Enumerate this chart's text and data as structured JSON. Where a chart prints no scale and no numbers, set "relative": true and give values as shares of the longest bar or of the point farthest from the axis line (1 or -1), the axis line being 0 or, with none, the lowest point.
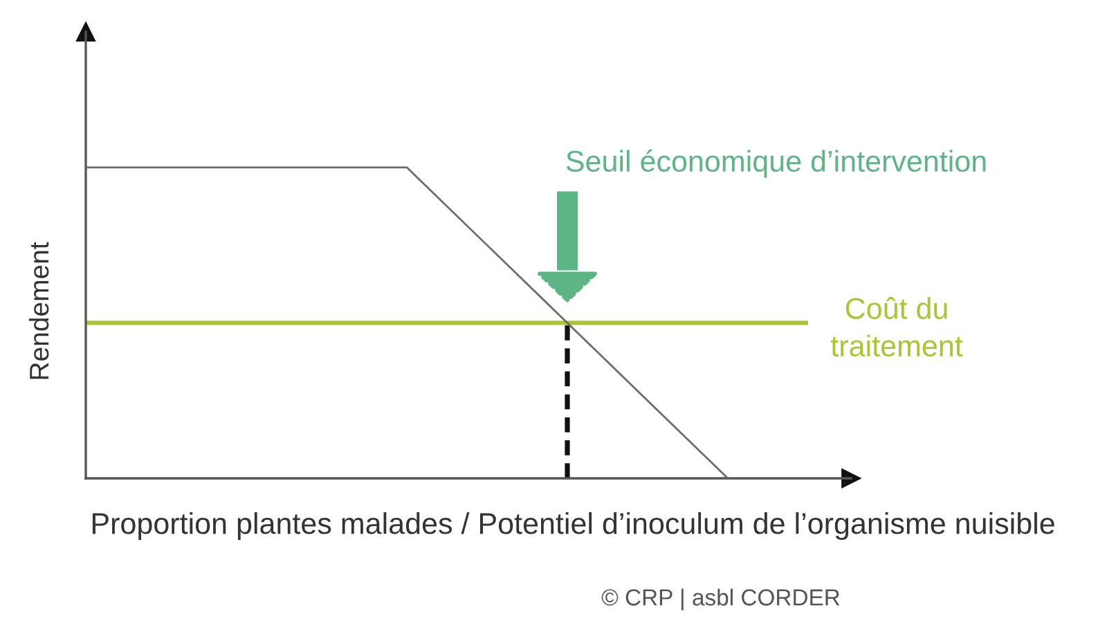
{
  "chart_data": {
    "type": "line",
    "relative": true,
    "xlabel": "Proportion plantes malades / Potentiel d’inoculum de l’organisme nuisible",
    "ylabel": "Rendement",
    "categories": [
      null,
      null,
      null,
      null,
      null,
      null,
      null,
      null,
      null,
      null
    ],
    "series": [
      {
        "color": "#6b6b6b",
        "values": [
          1,
          1,
          1,
          1,
          1,
          0.75,
          0.5,
          0.25,
          0,
          null
        ]
      }
    ],
    "ref_lines": [
      {
        "axis": "y",
        "value": 0.5,
        "label": "Coût du\ntraitement",
        "color": "#a9c531"
      }
    ],
    "annotations": [
      "Seuil économique d’intervention",
      "© CRP | asbl CORDER"
    ]
  }
}
